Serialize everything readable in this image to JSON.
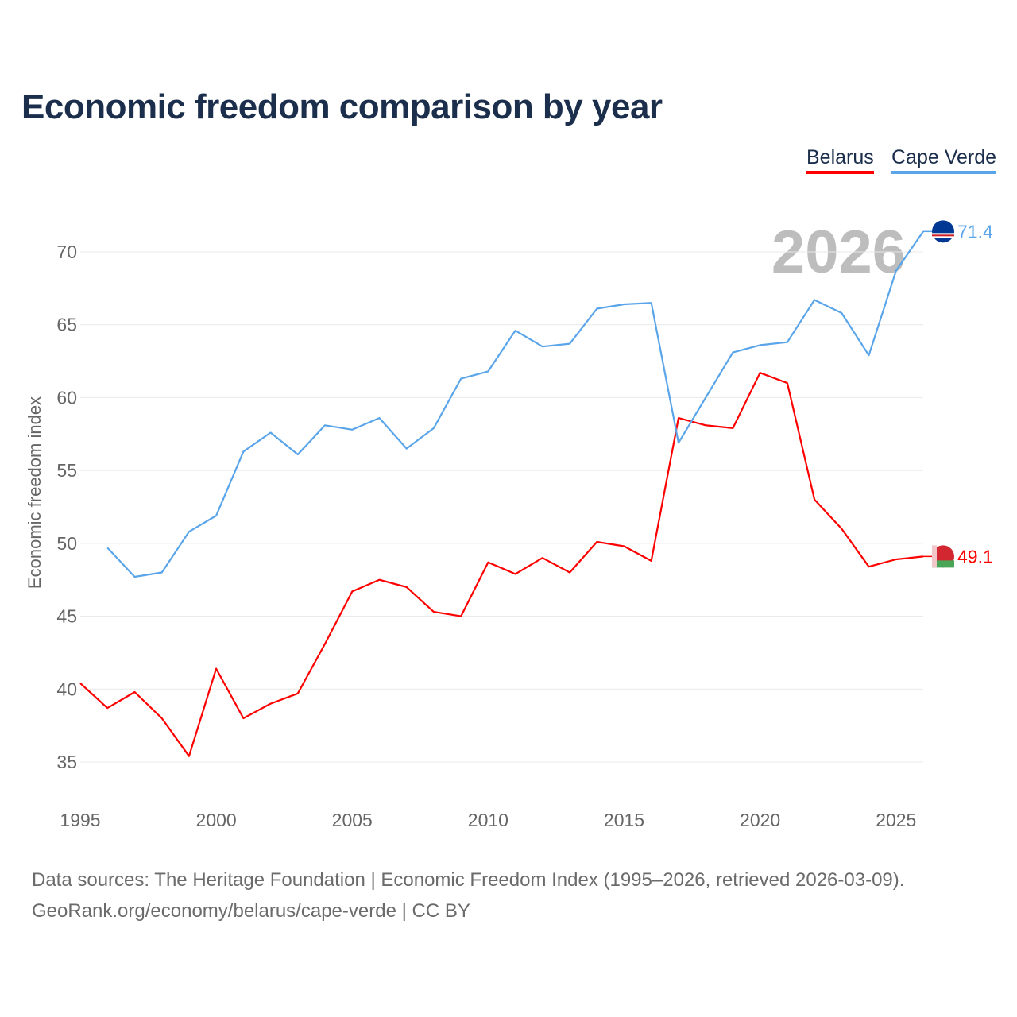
{
  "title": "Economic freedom comparison by year",
  "legend": [
    "Belarus",
    "Cape Verde"
  ],
  "source_line1": "Data sources: The Heritage Foundation | Economic Freedom Index (1995–2026, retrieved 2026-03-09).",
  "source_line2": "GeoRank.org/economy/belarus/cape-verde | CC BY",
  "chart_data": {
    "type": "line",
    "title": "Economic freedom comparison by year",
    "xlabel": "",
    "ylabel": "Economic freedom index",
    "xlim": [
      1995,
      2026
    ],
    "ylim": [
      33,
      73
    ],
    "yticks": [
      35,
      40,
      45,
      50,
      55,
      60,
      65,
      70
    ],
    "xticks": [
      1995,
      2000,
      2005,
      2010,
      2015,
      2020,
      2025
    ],
    "grid": true,
    "legend_position": "top-right",
    "watermark_year": "2026",
    "series": [
      {
        "name": "Belarus",
        "color": "#ff0000",
        "end_label": "49.1",
        "x": [
          1995,
          1996,
          1997,
          1998,
          1999,
          2000,
          2001,
          2002,
          2003,
          2004,
          2005,
          2006,
          2007,
          2008,
          2009,
          2010,
          2011,
          2012,
          2013,
          2014,
          2015,
          2016,
          2017,
          2018,
          2019,
          2020,
          2021,
          2022,
          2023,
          2024,
          2025,
          2026
        ],
        "values": [
          40.4,
          38.7,
          39.8,
          38.0,
          35.4,
          41.4,
          38.0,
          39.0,
          39.7,
          43.1,
          46.7,
          47.5,
          47.0,
          45.3,
          45.0,
          48.7,
          47.9,
          49.0,
          48.0,
          50.1,
          49.8,
          48.8,
          58.6,
          58.1,
          57.9,
          61.7,
          61.0,
          53.0,
          51.0,
          48.4,
          48.9,
          49.1
        ]
      },
      {
        "name": "Cape Verde",
        "color": "#5aa5ea",
        "end_label": "71.4",
        "x": [
          1996,
          1997,
          1998,
          1999,
          2000,
          2001,
          2002,
          2003,
          2004,
          2005,
          2006,
          2007,
          2008,
          2009,
          2010,
          2011,
          2012,
          2013,
          2014,
          2015,
          2016,
          2017,
          2018,
          2019,
          2020,
          2021,
          2022,
          2023,
          2024,
          2025,
          2026
        ],
        "values": [
          49.7,
          47.7,
          48.0,
          50.8,
          51.9,
          56.3,
          57.6,
          56.1,
          58.1,
          57.8,
          58.6,
          56.5,
          57.9,
          61.3,
          61.8,
          64.6,
          63.5,
          63.7,
          66.1,
          66.4,
          66.5,
          56.9,
          60.0,
          63.1,
          63.6,
          63.8,
          66.7,
          65.8,
          62.9,
          68.7,
          71.4
        ]
      }
    ]
  }
}
